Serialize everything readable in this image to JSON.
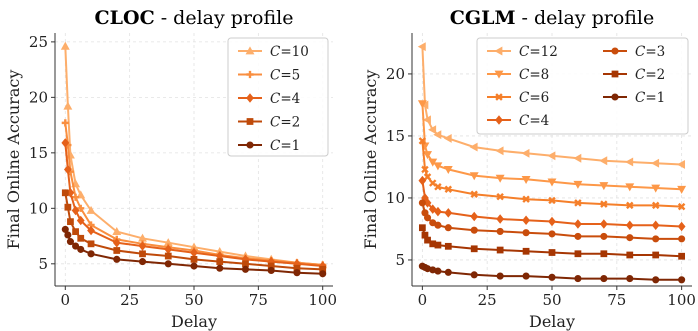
{
  "chart_data": [
    {
      "type": "line",
      "title_bold": "CLOC",
      "title_rest": " - delay profile",
      "xlabel": "Delay",
      "ylabel": "Final Online Accuracy",
      "xlim": [
        -4,
        104
      ],
      "ylim": [
        3.0,
        25.8
      ],
      "xticks": [
        0,
        25,
        50,
        75,
        100
      ],
      "yticks": [
        5,
        10,
        15,
        20,
        25
      ],
      "grid": true,
      "legend_position": "top-right",
      "legend_columns": 1,
      "x": [
        0,
        1,
        2,
        4,
        6,
        10,
        20,
        30,
        40,
        50,
        60,
        70,
        80,
        90,
        100
      ],
      "series": [
        {
          "name": "C=10",
          "sym": "C",
          "val": "=10",
          "color": "#fdae6b",
          "marker": "triangle",
          "values": [
            24.6,
            19.2,
            14.8,
            12.2,
            11.2,
            9.8,
            7.9,
            7.3,
            6.9,
            6.5,
            6.1,
            5.7,
            5.4,
            5.1,
            4.9
          ]
        },
        {
          "name": "C=5",
          "sym": "C",
          "val": "=5",
          "color": "#f98e3f",
          "marker": "plus",
          "values": [
            17.7,
            15.7,
            13.3,
            11.0,
            10.0,
            8.5,
            7.2,
            6.8,
            6.5,
            6.2,
            5.8,
            5.5,
            5.3,
            5.1,
            4.9
          ]
        },
        {
          "name": "C=4",
          "sym": "C",
          "val": "=4",
          "color": "#e5611a",
          "marker": "diamond",
          "values": [
            15.9,
            13.5,
            11.4,
            9.8,
            8.9,
            8.0,
            6.9,
            6.6,
            6.3,
            6.0,
            5.7,
            5.4,
            5.2,
            5.0,
            4.8
          ]
        },
        {
          "name": "C=2",
          "sym": "C",
          "val": "=2",
          "color": "#bf4a0a",
          "marker": "square",
          "values": [
            11.4,
            10.1,
            8.8,
            7.9,
            7.3,
            6.8,
            6.2,
            5.9,
            5.7,
            5.4,
            5.2,
            5.0,
            4.8,
            4.6,
            4.5
          ]
        },
        {
          "name": "C=1",
          "sym": "C",
          "val": "=1",
          "color": "#7f2704",
          "marker": "circle",
          "values": [
            8.1,
            7.6,
            7.0,
            6.6,
            6.3,
            5.9,
            5.4,
            5.2,
            5.0,
            4.8,
            4.6,
            4.5,
            4.4,
            4.2,
            4.1
          ]
        }
      ]
    },
    {
      "type": "line",
      "title_bold": "CGLM",
      "title_rest": " - delay profile",
      "xlabel": "Delay",
      "ylabel": "Final Online Accuracy",
      "xlim": [
        -4,
        104
      ],
      "ylim": [
        2.9,
        23.3
      ],
      "xticks": [
        0,
        25,
        50,
        75,
        100
      ],
      "yticks": [
        5,
        10,
        15,
        20
      ],
      "grid": true,
      "legend_position": "top",
      "legend_columns": 2,
      "x": [
        0,
        1,
        2,
        4,
        6,
        10,
        20,
        30,
        40,
        50,
        60,
        70,
        80,
        90,
        100
      ],
      "series": [
        {
          "name": "C=12",
          "sym": "C",
          "val": "=12",
          "color": "#fdae6b",
          "marker": "triangle-left",
          "values": [
            22.2,
            17.5,
            16.3,
            15.5,
            15.1,
            14.8,
            14.1,
            13.8,
            13.6,
            13.4,
            13.2,
            13.0,
            12.9,
            12.8,
            12.7
          ]
        },
        {
          "name": "C=8",
          "sym": "C",
          "val": "=8",
          "color": "#fd9848",
          "marker": "triangle-down",
          "values": [
            17.6,
            14.2,
            13.5,
            12.9,
            12.6,
            12.3,
            11.8,
            11.6,
            11.5,
            11.3,
            11.1,
            11.0,
            10.9,
            10.8,
            10.7
          ]
        },
        {
          "name": "C=6",
          "sym": "C",
          "val": "=6",
          "color": "#f57f2a",
          "marker": "x",
          "values": [
            14.6,
            12.3,
            11.7,
            11.2,
            10.9,
            10.7,
            10.3,
            10.1,
            9.9,
            9.8,
            9.6,
            9.5,
            9.4,
            9.4,
            9.3
          ]
        },
        {
          "name": "C=4",
          "sym": "C",
          "val": "=4",
          "color": "#e5611a",
          "marker": "diamond",
          "values": [
            11.4,
            10.0,
            9.6,
            9.1,
            8.9,
            8.8,
            8.5,
            8.3,
            8.2,
            8.1,
            7.9,
            7.9,
            7.8,
            7.8,
            7.7
          ]
        },
        {
          "name": "C=3",
          "sym": "C",
          "val": "=3",
          "color": "#c94d0c",
          "marker": "circle",
          "values": [
            9.6,
            8.8,
            8.4,
            8.0,
            7.8,
            7.6,
            7.4,
            7.3,
            7.2,
            7.1,
            6.9,
            6.9,
            6.8,
            6.7,
            6.7
          ]
        },
        {
          "name": "C=2",
          "sym": "C",
          "val": "=2",
          "color": "#a63603",
          "marker": "square",
          "values": [
            7.6,
            7.0,
            6.6,
            6.3,
            6.2,
            6.1,
            5.9,
            5.8,
            5.7,
            5.6,
            5.5,
            5.5,
            5.4,
            5.4,
            5.3
          ]
        },
        {
          "name": "C=1",
          "sym": "C",
          "val": "=1",
          "color": "#7f2704",
          "marker": "circle",
          "values": [
            4.5,
            4.4,
            4.3,
            4.2,
            4.1,
            4.0,
            3.8,
            3.7,
            3.7,
            3.6,
            3.5,
            3.5,
            3.5,
            3.4,
            3.4
          ]
        }
      ]
    }
  ]
}
